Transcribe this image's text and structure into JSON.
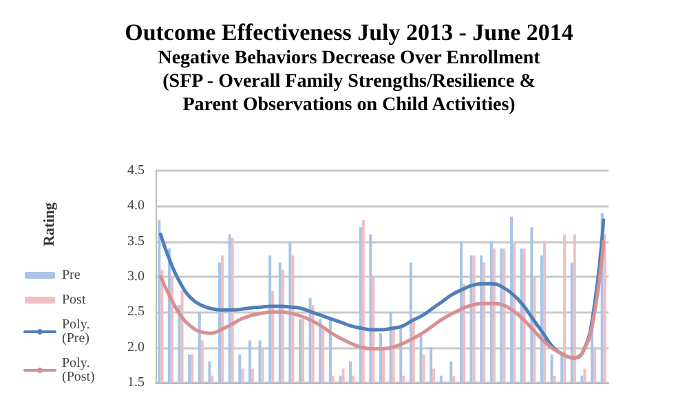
{
  "chart_data": {
    "type": "bar",
    "title": "Outcome Effectiveness July 2013 - June 2014",
    "subtitle": "Negative Behaviors Decrease Over Enrollment\n(SFP - Overall Family Strengths/Resilience &\nParent Observations on Child Activities)",
    "ylabel": "Rating",
    "categories": [
      null,
      null,
      null,
      null,
      null,
      null,
      null,
      null,
      null,
      null,
      null,
      null,
      null,
      null,
      null,
      null,
      null,
      null,
      null,
      null,
      null,
      null,
      null,
      null,
      null,
      null,
      null,
      null,
      null,
      null,
      null,
      null,
      null,
      null,
      null,
      null,
      null,
      null,
      null,
      null,
      null,
      null,
      null,
      null,
      null
    ],
    "series": [
      {
        "name": "Pre",
        "color": "#a9c4e4",
        "values": [
          3.8,
          3.4,
          2.6,
          1.9,
          2.5,
          1.8,
          3.2,
          3.6,
          1.9,
          2.1,
          2.1,
          3.3,
          3.2,
          3.5,
          2.4,
          2.7,
          2.4,
          2.4,
          1.6,
          1.8,
          3.7,
          3.6,
          2.2,
          2.5,
          2.3,
          3.2,
          2.2,
          2.0,
          1.6,
          1.8,
          3.5,
          3.3,
          3.3,
          3.5,
          3.4,
          3.85,
          3.4,
          3.7,
          3.3,
          1.9,
          1.9,
          3.2,
          1.6,
          2.3,
          3.9
        ]
      },
      {
        "name": "Post",
        "color": "#efbfc4",
        "values": [
          3.1,
          3.0,
          2.8,
          1.9,
          2.1,
          1.6,
          3.3,
          3.55,
          1.7,
          1.7,
          2.0,
          2.8,
          3.1,
          3.3,
          2.4,
          2.6,
          2.3,
          1.6,
          1.7,
          1.6,
          3.8,
          3.0,
          2.0,
          2.3,
          1.6,
          2.4,
          1.9,
          1.7,
          1.5,
          1.6,
          2.9,
          3.3,
          3.2,
          3.4,
          3.4,
          3.5,
          3.4,
          3.0,
          3.5,
          1.6,
          3.6,
          3.6,
          1.7,
          2.0,
          3.6
        ]
      },
      {
        "name": "Poly. (Pre)",
        "type": "line",
        "color": "#4f7fb8",
        "values": [
          3.6,
          3.2,
          2.9,
          2.7,
          2.6,
          2.55,
          2.53,
          2.53,
          2.54,
          2.56,
          2.57,
          2.58,
          2.58,
          2.57,
          2.55,
          2.5,
          2.45,
          2.4,
          2.35,
          2.3,
          2.27,
          2.25,
          2.25,
          2.27,
          2.3,
          2.38,
          2.45,
          2.55,
          2.65,
          2.75,
          2.82,
          2.88,
          2.9,
          2.9,
          2.85,
          2.75,
          2.6,
          2.4,
          2.2,
          2.0,
          1.9,
          1.85,
          1.95,
          2.5,
          3.8
        ]
      },
      {
        "name": "Poly. (Post)",
        "type": "line",
        "color": "#d98f92",
        "values": [
          3.0,
          2.7,
          2.45,
          2.3,
          2.22,
          2.2,
          2.25,
          2.32,
          2.4,
          2.45,
          2.48,
          2.5,
          2.5,
          2.48,
          2.44,
          2.38,
          2.3,
          2.2,
          2.12,
          2.05,
          2.0,
          1.98,
          1.98,
          2.0,
          2.05,
          2.12,
          2.2,
          2.3,
          2.4,
          2.48,
          2.55,
          2.6,
          2.62,
          2.62,
          2.6,
          2.52,
          2.4,
          2.25,
          2.1,
          1.98,
          1.9,
          1.85,
          1.95,
          2.4,
          3.5
        ]
      }
    ],
    "ylim": [
      1.5,
      4.5
    ],
    "yticks": [
      1.5,
      {
        "value": 2,
        "label": "2.0"
      },
      2.5,
      {
        "value": 3,
        "label": "3.0"
      },
      3.5,
      {
        "value": 4,
        "label": "4.0"
      },
      4.5
    ],
    "grid": "y",
    "legend": "left",
    "tick_labels": "y",
    "line_style": "solid"
  }
}
